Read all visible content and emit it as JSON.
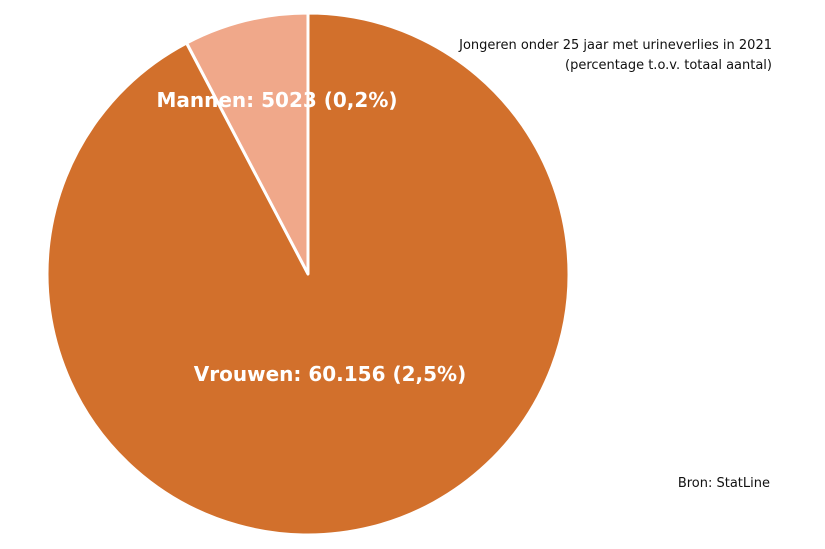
{
  "chart_data": {
    "type": "pie",
    "title": "Jongeren onder 25 jaar met urineverlies in 2021 (percentage t.o.v. totaal aantal)",
    "slices": [
      {
        "label": "Vrouwen: 60.156 (2,5%)",
        "value": 60156,
        "percent": "2,5%",
        "color": "#d2702c"
      },
      {
        "label": "Mannen: 5023 (0,2%)",
        "value": 5023,
        "percent": "0,2%",
        "color": "#f0a88a"
      }
    ],
    "source": "Bron: StatLine"
  }
}
